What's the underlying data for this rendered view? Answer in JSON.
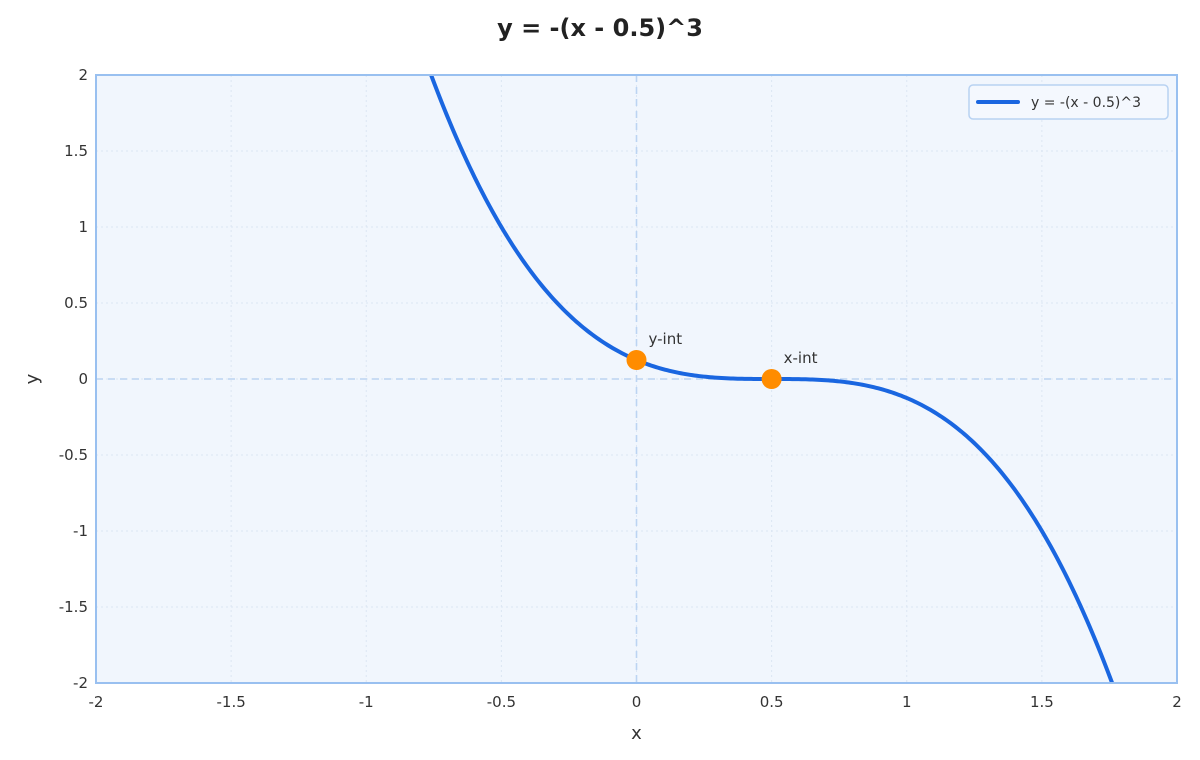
{
  "chart_data": {
    "type": "line",
    "title": "y = -(x - 0.5)^3",
    "xlabel": "x",
    "ylabel": "y",
    "xlim": [
      -2,
      2
    ],
    "ylim": [
      -2,
      2
    ],
    "xticks": [
      -2,
      -1.5,
      -1,
      -0.5,
      0,
      0.5,
      1,
      1.5,
      2
    ],
    "yticks": [
      -2,
      -1.5,
      -1,
      -0.5,
      0,
      0.5,
      1,
      1.5,
      2
    ],
    "xtick_labels": [
      "-2",
      "-1.5",
      "-1",
      "-0.5",
      "0",
      "0.5",
      "1",
      "1.5",
      "2"
    ],
    "ytick_labels": [
      "-2",
      "-1.5",
      "-1",
      "-0.5",
      "0",
      "0.5",
      "1",
      "1.5",
      "2"
    ],
    "grid": true,
    "legend_position": "upper right",
    "series": [
      {
        "name": "y = -(x - 0.5)^3",
        "color": "#1a66e0",
        "function": "-(x-0.5)^3",
        "x": [
          -0.76,
          -0.5,
          -0.25,
          0,
          0.25,
          0.5,
          0.75,
          1,
          1.25,
          1.5,
          1.76
        ],
        "values": [
          2.0,
          1.0,
          0.422,
          0.125,
          0.016,
          0,
          -0.016,
          -0.125,
          -0.422,
          -1.0,
          -2.0
        ]
      }
    ],
    "annotations": [
      {
        "label": "y-int",
        "x": 0,
        "y": 0.125,
        "color": "#ff8c00"
      },
      {
        "label": "x-int",
        "x": 0.5,
        "y": 0,
        "color": "#ff8c00"
      }
    ],
    "reference_lines": [
      {
        "axis": "x",
        "value": 0,
        "style": "dashed"
      },
      {
        "axis": "y",
        "value": 0,
        "style": "dashed"
      }
    ]
  },
  "colors": {
    "plot_bg": "#f1f6fd",
    "frame": "#99c0f0",
    "grid": "#dce6f3",
    "ref_line": "#bcd4f2",
    "line": "#1a66e0",
    "marker": "#ff8c00"
  }
}
